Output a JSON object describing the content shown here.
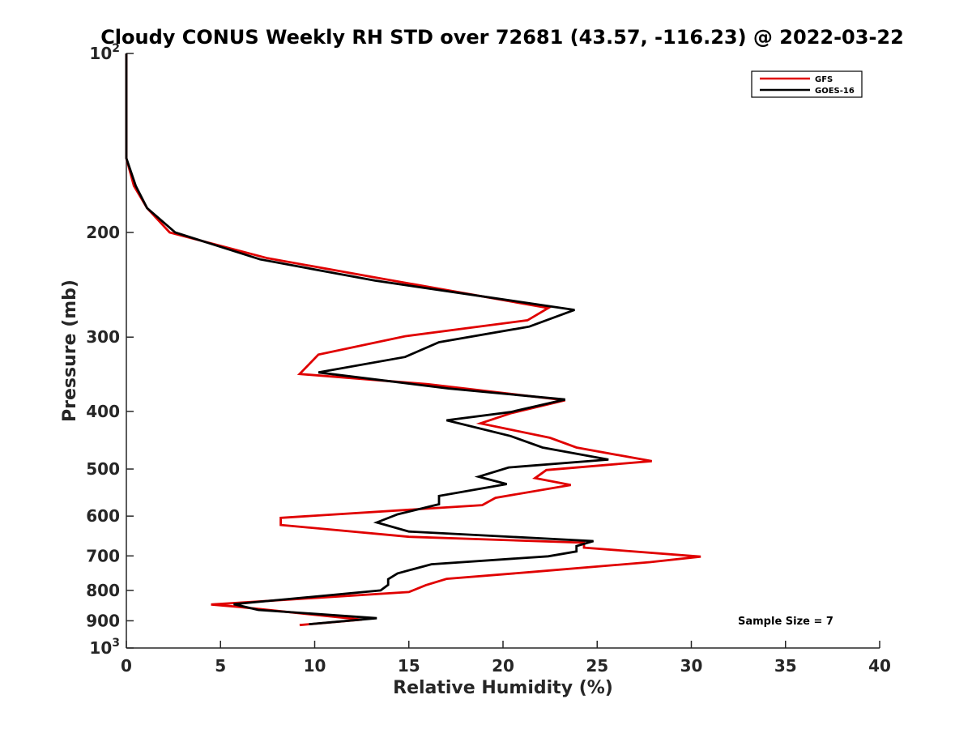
{
  "chart_data": {
    "type": "line",
    "title": "Cloudy CONUS Weekly RH STD over 72681 (43.57, -116.23) @ 2022-03-22",
    "xlabel": "Relative Humidity (%)",
    "ylabel": "Pressure (mb)",
    "xlim": [
      0,
      40
    ],
    "ylim": [
      100,
      1000
    ],
    "y_scale": "log",
    "y_reversed": true,
    "grid": false,
    "legend_position": "top-right",
    "x_ticks": [
      "0",
      "5",
      "10",
      "15",
      "20",
      "25",
      "30",
      "35",
      "40"
    ],
    "x_tick_values": [
      0,
      5,
      10,
      15,
      20,
      25,
      30,
      35,
      40
    ],
    "y_tick_values": [
      100,
      200,
      300,
      400,
      500,
      600,
      700,
      800,
      900,
      1000
    ],
    "y_tick_labels": [
      {
        "base": "10",
        "exp": "2"
      },
      {
        "base": "200",
        "exp": ""
      },
      {
        "base": "300",
        "exp": ""
      },
      {
        "base": "400",
        "exp": ""
      },
      {
        "base": "500",
        "exp": ""
      },
      {
        "base": "600",
        "exp": ""
      },
      {
        "base": "700",
        "exp": ""
      },
      {
        "base": "800",
        "exp": ""
      },
      {
        "base": "900",
        "exp": ""
      },
      {
        "base": "10",
        "exp": "3"
      }
    ],
    "series": [
      {
        "name": "GFS",
        "color": "#e00000",
        "points": [
          [
            0,
            100
          ],
          [
            0,
            150
          ],
          [
            0.4,
            167
          ],
          [
            1.1,
            182
          ],
          [
            2.3,
            200
          ],
          [
            7.5,
            221
          ],
          [
            13.5,
            239
          ],
          [
            22.4,
            268
          ],
          [
            21.3,
            281
          ],
          [
            14.8,
            299
          ],
          [
            10.2,
            321
          ],
          [
            9.2,
            346
          ],
          [
            16.0,
            360
          ],
          [
            23.3,
            383
          ],
          [
            20.4,
            403
          ],
          [
            18.8,
            419
          ],
          [
            22.5,
            443
          ],
          [
            23.9,
            460
          ],
          [
            27.9,
            485
          ],
          [
            22.3,
            502
          ],
          [
            21.7,
            518
          ],
          [
            23.6,
            532
          ],
          [
            19.6,
            559
          ],
          [
            18.9,
            575
          ],
          [
            8.2,
            604
          ],
          [
            8.2,
            621
          ],
          [
            15.0,
            650
          ],
          [
            24.3,
            665
          ],
          [
            24.3,
            678
          ],
          [
            30.5,
            702
          ],
          [
            27.8,
            717
          ],
          [
            21.5,
            745
          ],
          [
            17.0,
            765
          ],
          [
            15.9,
            784
          ],
          [
            15.0,
            805
          ],
          [
            4.5,
            845
          ],
          [
            6.0,
            853
          ],
          [
            12.5,
            896
          ],
          [
            9.2,
            915
          ]
        ]
      },
      {
        "name": "GOES-16",
        "color": "#000000",
        "points": [
          [
            0,
            100
          ],
          [
            0,
            150
          ],
          [
            0.5,
            167
          ],
          [
            1.1,
            182
          ],
          [
            2.6,
            200
          ],
          [
            7.1,
            222
          ],
          [
            13.2,
            241
          ],
          [
            23.8,
            270
          ],
          [
            21.4,
            288
          ],
          [
            16.6,
            306
          ],
          [
            14.8,
            324
          ],
          [
            10.2,
            344
          ],
          [
            17.1,
            366
          ],
          [
            23.3,
            382
          ],
          [
            20.4,
            401
          ],
          [
            17.0,
            414
          ],
          [
            20.4,
            440
          ],
          [
            22.1,
            460
          ],
          [
            25.6,
            482
          ],
          [
            20.3,
            497
          ],
          [
            18.7,
            515
          ],
          [
            20.2,
            530
          ],
          [
            16.6,
            555
          ],
          [
            16.6,
            573
          ],
          [
            14.4,
            596
          ],
          [
            13.3,
            615
          ],
          [
            15.0,
            637
          ],
          [
            24.8,
            661
          ],
          [
            23.9,
            674
          ],
          [
            23.9,
            688
          ],
          [
            22.4,
            701
          ],
          [
            16.2,
            723
          ],
          [
            14.4,
            749
          ],
          [
            13.9,
            766
          ],
          [
            13.9,
            783
          ],
          [
            13.5,
            800
          ],
          [
            5.7,
            844
          ],
          [
            7.0,
            863
          ],
          [
            13.3,
            891
          ],
          [
            9.7,
            912
          ]
        ]
      }
    ],
    "annotations": [
      "Sample Size = 7"
    ]
  }
}
